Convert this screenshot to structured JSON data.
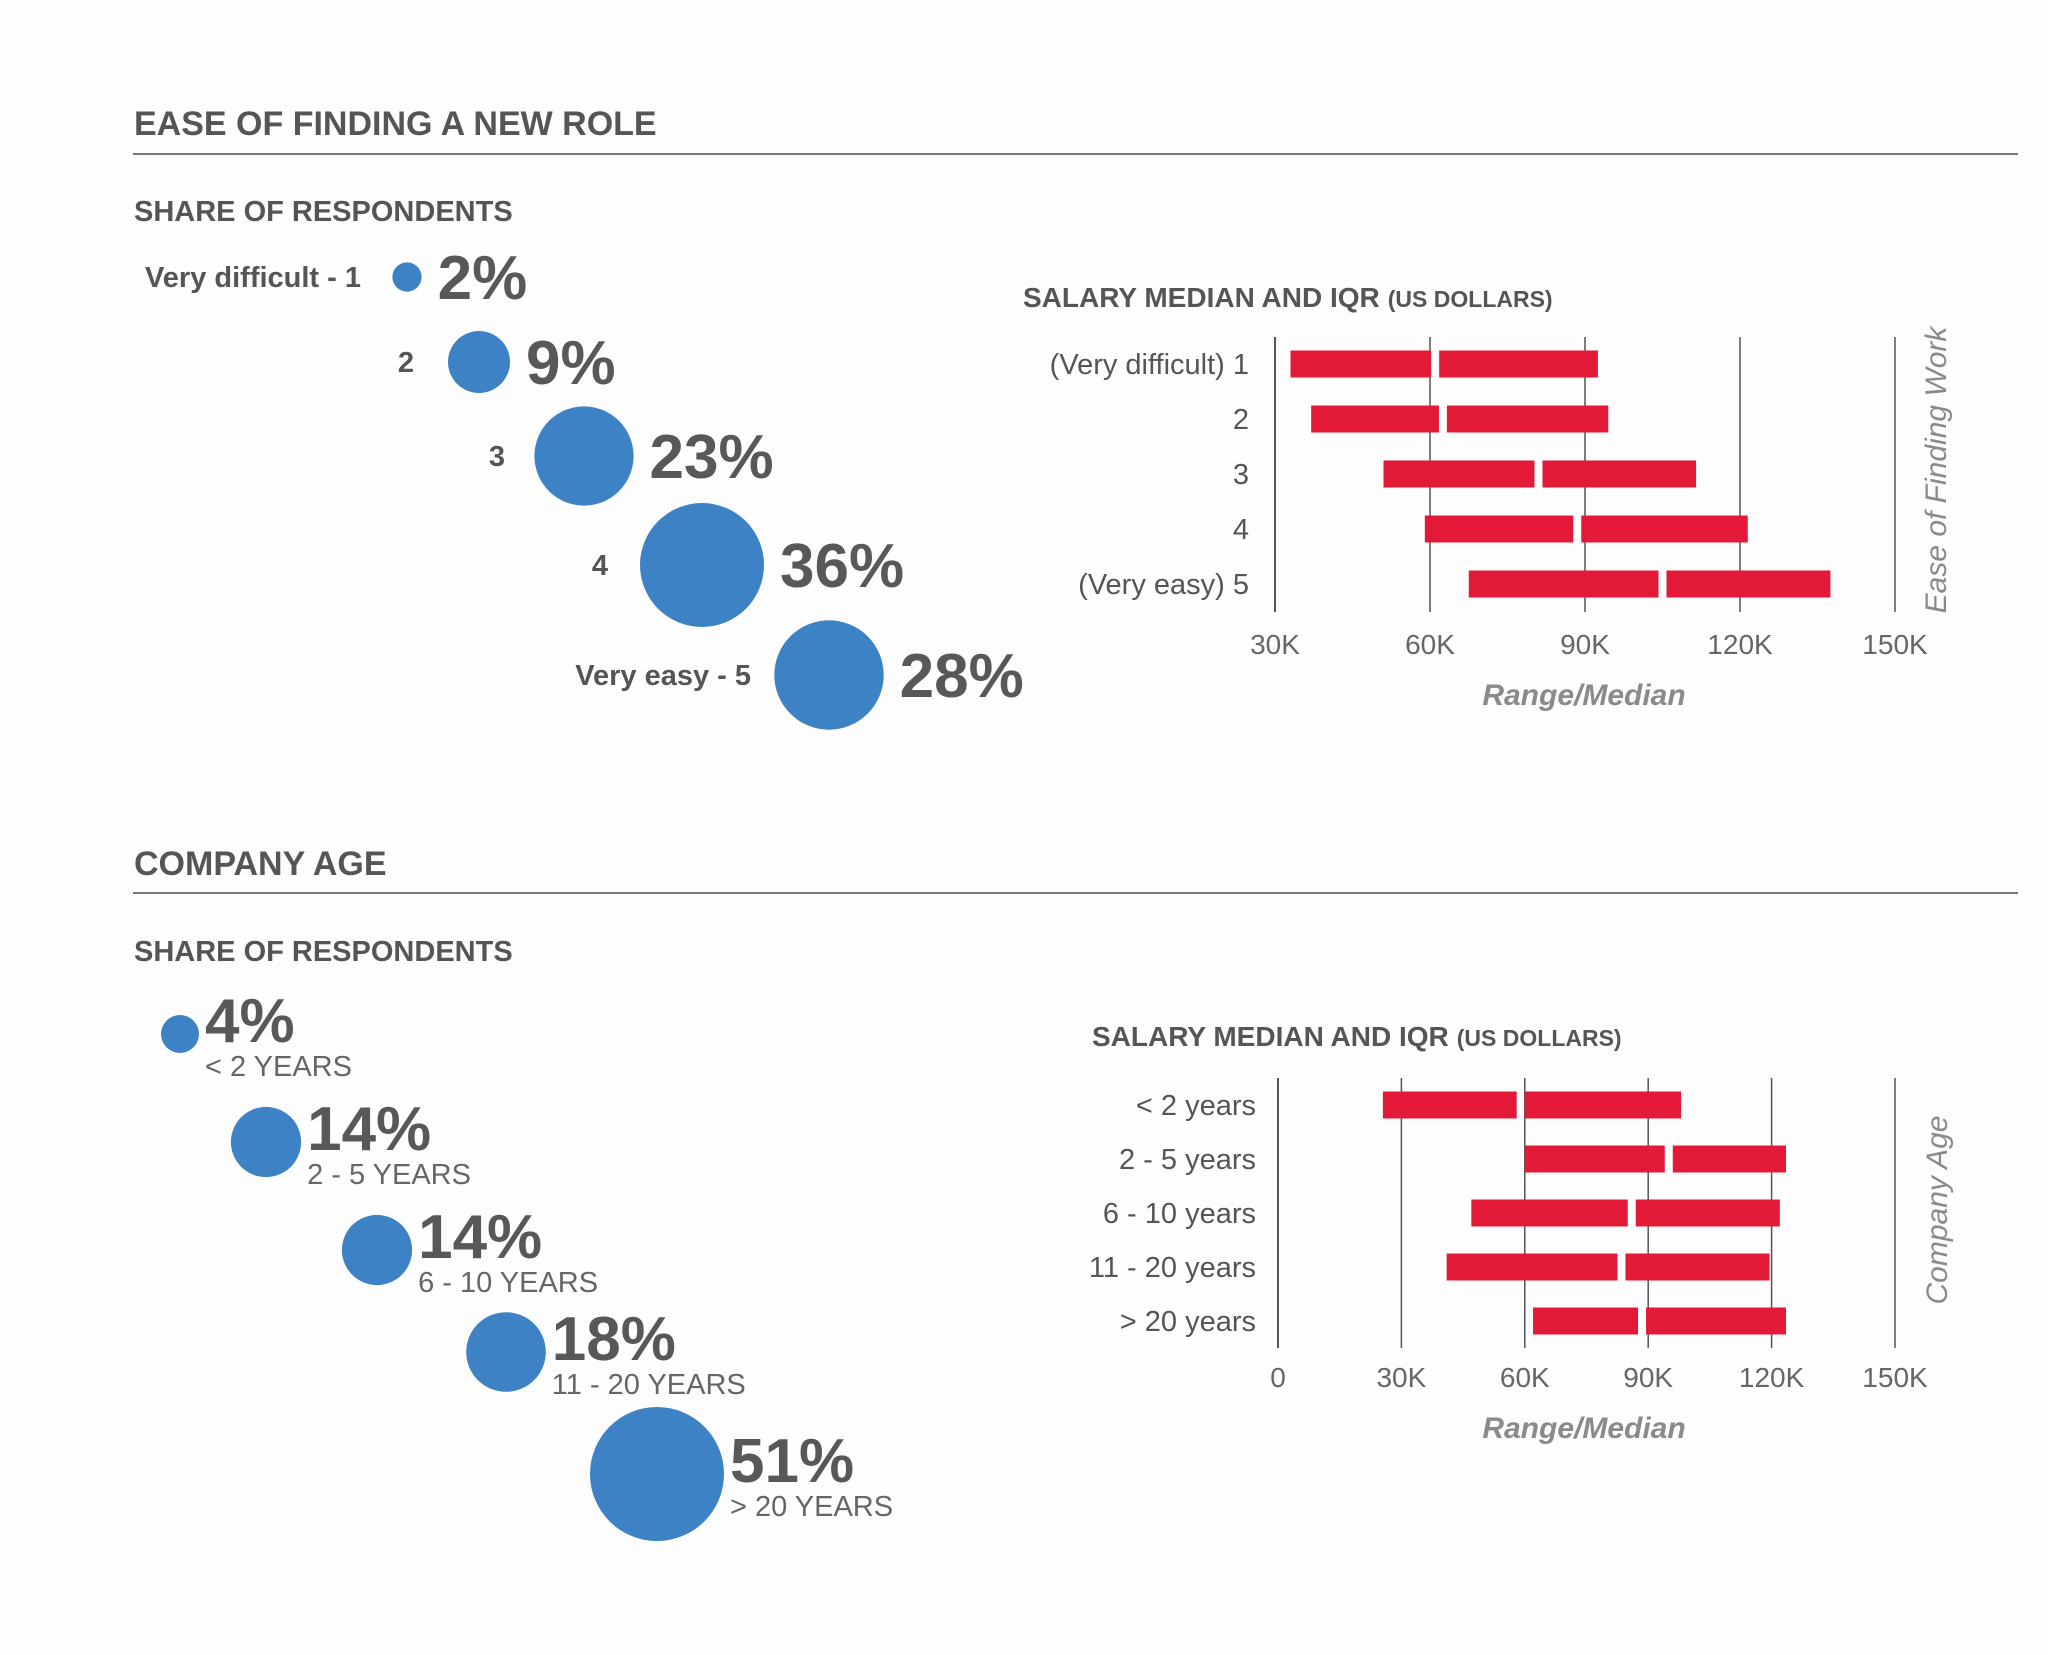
{
  "colors": {
    "bubble": "#3d82c4",
    "bar": "#e21a38",
    "heading": "#555555",
    "pct": "#58585a",
    "axis": "#666666",
    "italic_label": "#8a8a8a"
  },
  "sections": {
    "ease": {
      "heading": "EASE OF FINDING A NEW ROLE",
      "share_heading": "SHARE OF RESPONDENTS",
      "salary_heading_main": "SALARY MEDIAN AND IQR",
      "salary_heading_unit": "(US DOLLARS)",
      "xlabel": "Range/Median",
      "side_label": "Ease of Finding Work"
    },
    "age": {
      "heading": "COMPANY AGE",
      "share_heading": "SHARE OF RESPONDENTS",
      "salary_heading_main": "SALARY MEDIAN AND IQR",
      "salary_heading_unit": "(US DOLLARS)",
      "xlabel": "Range/Median",
      "side_label": "Company Age"
    }
  },
  "chart_data": [
    {
      "id": "ease_share",
      "type": "bubble",
      "title": "SHARE OF RESPONDENTS",
      "categories": [
        "Very difficult - 1",
        "2",
        "3",
        "4",
        "Very easy - 5"
      ],
      "labels": [
        "2%",
        "9%",
        "23%",
        "36%",
        "28%"
      ],
      "values": [
        2,
        9,
        23,
        36,
        28
      ]
    },
    {
      "id": "ease_salary",
      "type": "bar",
      "title": "SALARY MEDIAN AND IQR (US DOLLARS)",
      "xlabel": "Range/Median",
      "ylabel": "Ease of Finding Work",
      "xlim": [
        30000,
        150000
      ],
      "xticks": [
        "30K",
        "60K",
        "90K",
        "120K",
        "150K"
      ],
      "xtick_values": [
        30000,
        60000,
        90000,
        120000,
        150000
      ],
      "grid": "vertical",
      "categories": [
        "(Very difficult) 1",
        "2",
        "3",
        "4",
        "(Very easy) 5"
      ],
      "series": [
        {
          "q1": 33000,
          "median": 61000,
          "q3": 92500
        },
        {
          "q1": 37000,
          "median": 62500,
          "q3": 94500
        },
        {
          "q1": 51000,
          "median": 81000,
          "q3": 111500
        },
        {
          "q1": 59000,
          "median": 88500,
          "q3": 121500
        },
        {
          "q1": 67500,
          "median": 105000,
          "q3": 137500
        }
      ]
    },
    {
      "id": "age_share",
      "type": "bubble",
      "title": "SHARE OF RESPONDENTS",
      "categories": [
        "< 2 YEARS",
        "2 - 5 YEARS",
        "6 - 10 YEARS",
        "11 - 20 YEARS",
        "> 20 YEARS"
      ],
      "labels": [
        "4%",
        "14%",
        "14%",
        "18%",
        "51%"
      ],
      "values": [
        4,
        14,
        14,
        18,
        51
      ]
    },
    {
      "id": "age_salary",
      "type": "bar",
      "title": "SALARY MEDIAN AND IQR (US DOLLARS)",
      "xlabel": "Range/Median",
      "ylabel": "Company Age",
      "xlim": [
        0,
        150000
      ],
      "xticks": [
        "0",
        "30K",
        "60K",
        "90K",
        "120K",
        "150K"
      ],
      "xtick_values": [
        0,
        30000,
        60000,
        90000,
        120000,
        150000
      ],
      "grid": "vertical",
      "categories": [
        "< 2 years",
        "2 - 5 years",
        "6 - 10 years",
        "11 - 20 years",
        "> 20 years"
      ],
      "series": [
        {
          "q1": 25500,
          "median": 59000,
          "q3": 98000
        },
        {
          "q1": 60000,
          "median": 95000,
          "q3": 123500
        },
        {
          "q1": 47000,
          "median": 86000,
          "q3": 122000
        },
        {
          "q1": 41000,
          "median": 83500,
          "q3": 119500
        },
        {
          "q1": 62000,
          "median": 88500,
          "q3": 123500
        }
      ]
    }
  ]
}
